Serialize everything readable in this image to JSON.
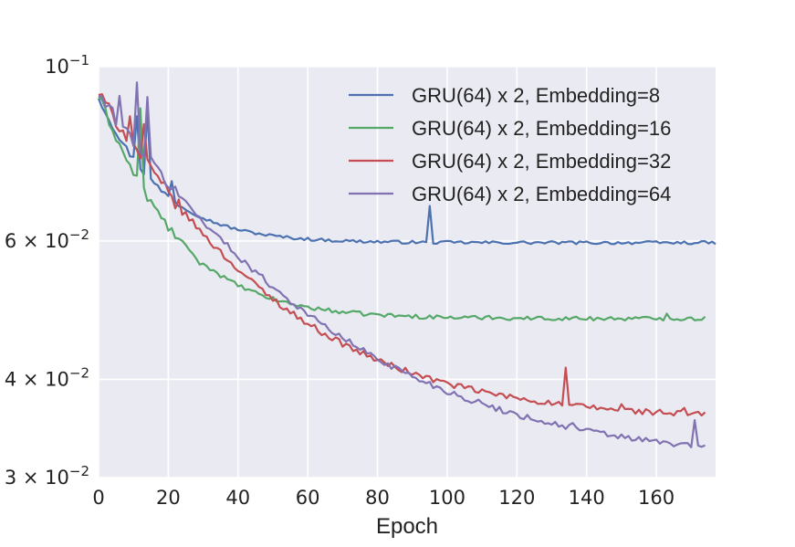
{
  "chart_data": {
    "type": "line",
    "title": "",
    "xlabel": "Epoch",
    "ylabel": "",
    "yscale": "log",
    "xlim": [
      0,
      177
    ],
    "ylim": [
      0.03,
      0.1
    ],
    "xticks": [
      0,
      20,
      40,
      60,
      80,
      100,
      120,
      140,
      160
    ],
    "xtick_labels": [
      "0",
      "20",
      "40",
      "60",
      "80",
      "100",
      "120",
      "140",
      "160"
    ],
    "yticks": [
      {
        "value": 0.1,
        "mantissa": "10",
        "exponent": "−1"
      },
      {
        "value": 0.06,
        "mantissa": "6 × 10",
        "exponent": "−2"
      },
      {
        "value": 0.04,
        "mantissa": "4 × 10",
        "exponent": "−2"
      },
      {
        "value": 0.03,
        "mantissa": "3 × 10",
        "exponent": "−2"
      }
    ],
    "grid": true,
    "legend_position": "top-right",
    "background": "#eaeaf2",
    "series": [
      {
        "name": "GRU(64) x 2, Embedding=8",
        "color": "#4c72b0",
        "start": 0.0915,
        "plateau": 0.0597,
        "rate": 0.065,
        "noise": 0.0045,
        "end": 177,
        "spikes": [
          [
            95,
            0.0665
          ],
          [
            14,
            0.088
          ],
          [
            11,
            0.0865
          ],
          [
            21,
            0.0715
          ]
        ]
      },
      {
        "name": "GRU(64) x 2, Embedding=16",
        "color": "#55a868",
        "start": 0.092,
        "plateau": 0.0478,
        "rate": 0.055,
        "noise": 0.006,
        "end": 174,
        "spikes": [
          [
            12,
            0.0885
          ],
          [
            8,
            0.076
          ],
          [
            29,
            0.056
          ],
          [
            163,
            0.0485
          ],
          [
            112,
            0.0482
          ]
        ]
      },
      {
        "name": "GRU(64) x 2, Embedding=32",
        "color": "#c44e52",
        "start": 0.0925,
        "plateau": 0.0355,
        "rate": 0.0265,
        "noise": 0.009,
        "end": 174,
        "spikes": [
          [
            9,
            0.0865
          ],
          [
            13,
            0.0845
          ],
          [
            134,
            0.0414
          ],
          [
            91,
            0.0408
          ],
          [
            168,
            0.0368
          ],
          [
            150,
            0.0372
          ]
        ]
      },
      {
        "name": "GRU(64) x 2, Embedding=64",
        "color": "#8172b2",
        "start": 0.092,
        "plateau": 0.0312,
        "rate": 0.021,
        "noise": 0.009,
        "end": 174,
        "spikes": [
          [
            11,
            0.0955
          ],
          [
            14,
            0.0915
          ],
          [
            6,
            0.0918
          ],
          [
            171,
            0.0355
          ],
          [
            136,
            0.0352
          ]
        ]
      }
    ]
  }
}
